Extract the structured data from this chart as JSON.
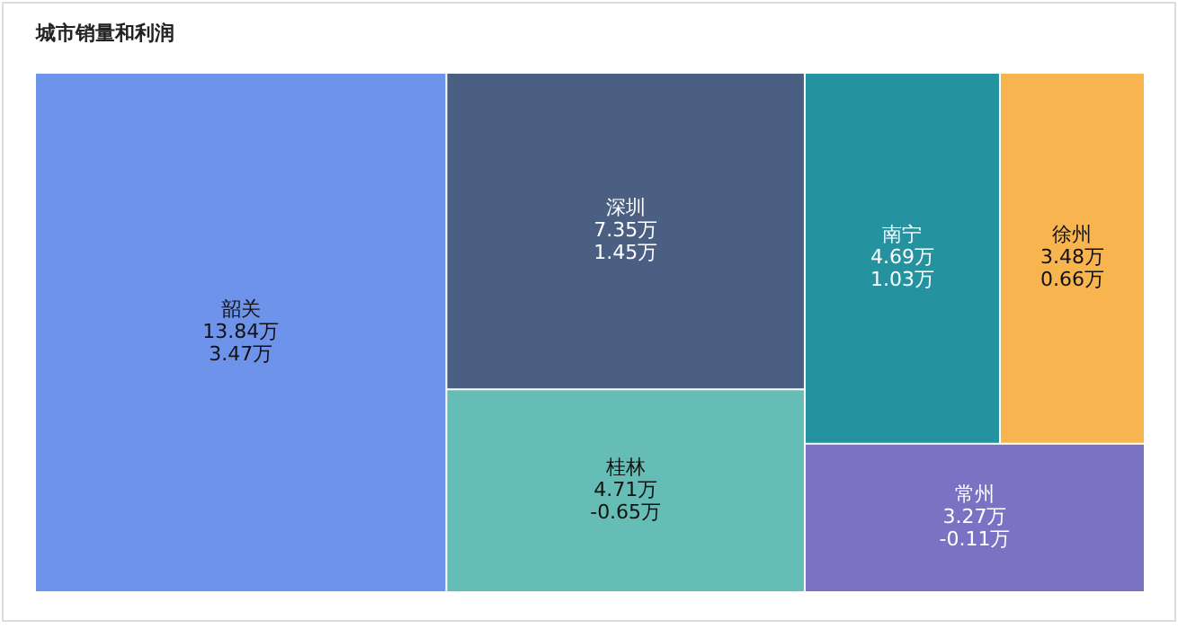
{
  "chart_data": {
    "type": "other",
    "title": "城市销量和利润",
    "categories": [
      "韶关",
      "深圳",
      "桂林",
      "南宁",
      "徐州",
      "常州"
    ],
    "series": [
      {
        "colors": [
          "#6e93eb",
          "#4b5f82",
          "#66bdb6",
          "#25939f",
          "#f8b44f",
          "#7b72c4"
        ],
        "values": [
          13.84,
          7.35,
          4.71,
          4.69,
          3.48,
          3.27
        ],
        "value_labels": [
          "13.84万",
          "7.35万",
          "4.71万",
          "4.69万",
          "3.48万",
          "3.27万"
        ]
      },
      {
        "values": [
          3.47,
          1.45,
          -0.65,
          1.03,
          0.66,
          -0.11
        ],
        "value_labels": [
          "3.47万",
          "1.45万",
          "-0.65万",
          "1.03万",
          "0.66万",
          "-0.11万"
        ]
      }
    ]
  }
}
